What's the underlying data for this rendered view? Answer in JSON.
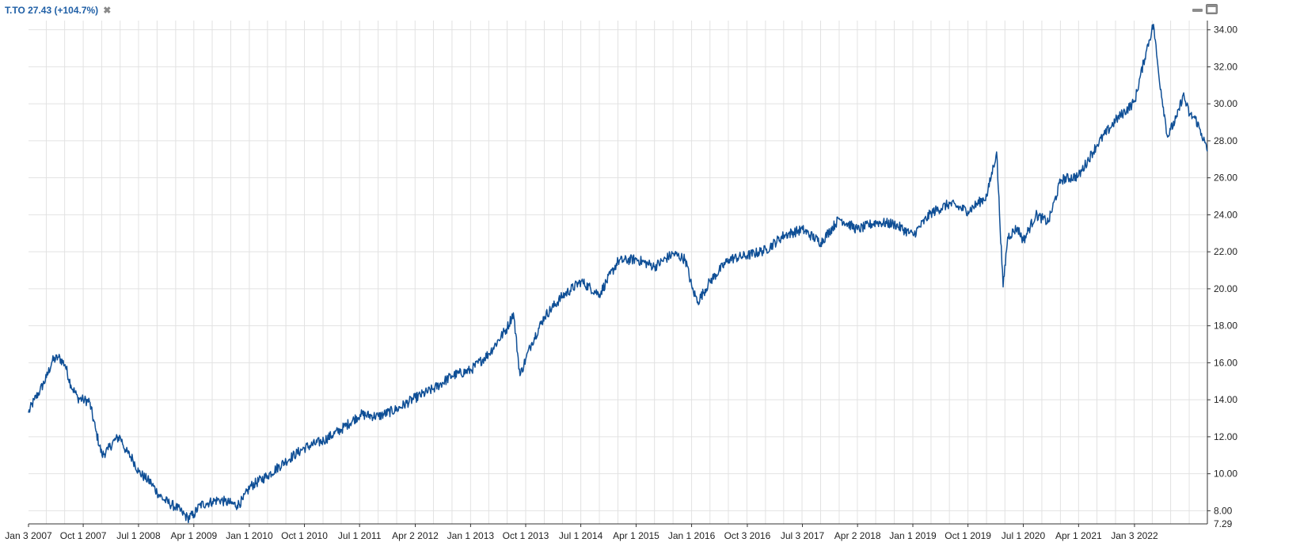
{
  "legend": {
    "label": "T.TO 27.43 (+104.7%)",
    "close_glyph": "✖"
  },
  "window_controls": [
    {
      "name": "minimize-icon"
    },
    {
      "name": "maximize-icon"
    }
  ],
  "colors": {
    "line": "#0f4f96",
    "grid": "#e2e2e2",
    "axis": "#333333",
    "legend_text": "#1f5fa6"
  },
  "chart_data": {
    "type": "line",
    "title": "",
    "xlabel": "",
    "ylabel": "",
    "grid": true,
    "y_axis_side": "right",
    "ylim": [
      7.29,
      34.5
    ],
    "xlim": [
      "2007-01-03",
      "2022-12-30"
    ],
    "x_tick_labels": [
      {
        "date": "2007-01-03",
        "label": "Jan 3 2007"
      },
      {
        "date": "2007-10-01",
        "label": "Oct 1 2007"
      },
      {
        "date": "2008-07-01",
        "label": "Jul 1 2008"
      },
      {
        "date": "2009-04-01",
        "label": "Apr 1 2009"
      },
      {
        "date": "2010-01-01",
        "label": "Jan 1 2010"
      },
      {
        "date": "2010-10-01",
        "label": "Oct 1 2010"
      },
      {
        "date": "2011-07-01",
        "label": "Jul 1 2011"
      },
      {
        "date": "2012-04-02",
        "label": "Apr 2 2012"
      },
      {
        "date": "2013-01-01",
        "label": "Jan 1 2013"
      },
      {
        "date": "2013-10-01",
        "label": "Oct 1 2013"
      },
      {
        "date": "2014-07-01",
        "label": "Jul 1 2014"
      },
      {
        "date": "2015-04-01",
        "label": "Apr 1 2015"
      },
      {
        "date": "2016-01-01",
        "label": "Jan 1 2016"
      },
      {
        "date": "2016-10-03",
        "label": "Oct 3 2016"
      },
      {
        "date": "2017-07-03",
        "label": "Jul 3 2017"
      },
      {
        "date": "2018-04-02",
        "label": "Apr 2 2018"
      },
      {
        "date": "2019-01-01",
        "label": "Jan 1 2019"
      },
      {
        "date": "2019-10-01",
        "label": "Oct 1 2019"
      },
      {
        "date": "2020-07-01",
        "label": "Jul 1 2020"
      },
      {
        "date": "2021-04-01",
        "label": "Apr 1 2021"
      },
      {
        "date": "2022-01-03",
        "label": "Jan 3 2022"
      }
    ],
    "y_ticks": [
      8,
      10,
      12,
      14,
      16,
      18,
      20,
      22,
      24,
      26,
      28,
      30,
      32,
      34
    ],
    "y_tick_labels": [
      "8.00",
      "10.00",
      "12.00",
      "14.00",
      "16.00",
      "18.00",
      "20.00",
      "22.00",
      "24.00",
      "26.00",
      "28.00",
      "30.00",
      "32.00",
      "34.00"
    ],
    "y_min_label": "7.29",
    "series": [
      {
        "x": [
          "2007-01-03",
          "2007-02-01",
          "2007-03-01",
          "2007-04-02",
          "2007-05-01",
          "2007-06-01",
          "2007-07-03",
          "2007-08-01",
          "2007-09-04",
          "2007-10-01",
          "2007-11-01",
          "2007-12-03",
          "2008-01-02",
          "2008-02-01",
          "2008-03-03",
          "2008-04-01",
          "2008-05-01",
          "2008-06-02",
          "2008-07-02",
          "2008-08-01",
          "2008-09-02",
          "2008-10-01",
          "2008-11-03",
          "2008-12-01",
          "2009-01-02",
          "2009-02-02",
          "2009-03-02",
          "2009-04-01",
          "2009-05-01",
          "2009-06-01",
          "2009-07-02",
          "2009-08-04",
          "2009-09-01",
          "2009-10-01",
          "2009-11-02",
          "2009-12-01",
          "2010-01-04",
          "2010-04-01",
          "2010-07-02",
          "2010-10-01",
          "2011-01-04",
          "2011-04-01",
          "2011-07-04",
          "2011-10-03",
          "2012-01-03",
          "2012-04-02",
          "2012-07-03",
          "2012-10-01",
          "2013-01-02",
          "2013-04-02",
          "2013-07-02",
          "2013-08-01",
          "2013-09-03",
          "2013-10-01",
          "2013-11-01",
          "2014-01-02",
          "2014-04-01",
          "2014-07-02",
          "2014-10-01",
          "2015-01-02",
          "2015-04-01",
          "2015-07-02",
          "2015-10-01",
          "2015-12-01",
          "2016-01-04",
          "2016-02-01",
          "2016-04-01",
          "2016-07-04",
          "2016-10-03",
          "2017-01-03",
          "2017-04-03",
          "2017-07-04",
          "2017-10-02",
          "2018-01-02",
          "2018-04-02",
          "2018-07-03",
          "2018-10-01",
          "2019-01-02",
          "2019-04-01",
          "2019-07-02",
          "2019-10-01",
          "2020-01-02",
          "2020-02-20",
          "2020-03-23",
          "2020-04-15",
          "2020-06-01",
          "2020-07-02",
          "2020-09-01",
          "2020-11-02",
          "2021-01-04",
          "2021-04-01",
          "2021-07-02",
          "2021-10-01",
          "2022-01-03",
          "2022-03-01",
          "2022-04-07",
          "2022-05-02",
          "2022-06-16",
          "2022-07-01",
          "2022-08-02",
          "2022-09-01",
          "2022-10-03",
          "2022-11-01",
          "2022-12-01",
          "2022-12-30"
        ],
        "y": [
          13.3,
          14.0,
          14.5,
          15.2,
          16.1,
          16.3,
          15.9,
          14.8,
          14.1,
          14.0,
          13.9,
          12.3,
          11.0,
          11.3,
          11.8,
          12.0,
          11.2,
          10.8,
          10.1,
          9.8,
          9.5,
          9.0,
          8.6,
          8.4,
          8.2,
          7.9,
          7.6,
          7.8,
          8.3,
          8.4,
          8.5,
          8.6,
          8.5,
          8.4,
          8.3,
          8.6,
          9.3,
          9.9,
          10.7,
          11.4,
          11.8,
          12.4,
          13.2,
          13.1,
          13.5,
          14.1,
          14.6,
          15.3,
          15.6,
          16.5,
          17.9,
          18.7,
          15.3,
          16.2,
          17.1,
          18.5,
          19.6,
          20.4,
          19.7,
          21.5,
          21.6,
          21.2,
          21.9,
          21.6,
          20.0,
          19.3,
          20.4,
          21.6,
          21.8,
          22.1,
          22.9,
          23.2,
          22.5,
          23.8,
          23.2,
          23.6,
          23.5,
          22.9,
          24.1,
          24.6,
          24.2,
          25.0,
          27.4,
          20.1,
          22.8,
          23.3,
          22.6,
          24.0,
          23.6,
          25.9,
          26.1,
          27.8,
          29.1,
          30.1,
          32.8,
          34.3,
          31.7,
          28.2,
          28.6,
          29.3,
          30.5,
          29.4,
          29.2,
          28.4,
          27.43
        ]
      }
    ]
  }
}
